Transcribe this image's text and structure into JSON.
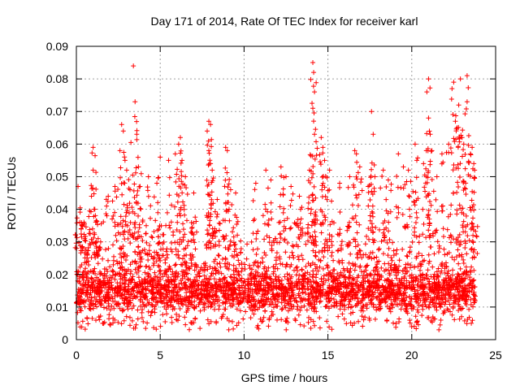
{
  "chart_data": {
    "type": "scatter",
    "title": "Day 171 of 2014, Rate Of TEC Index for receiver karl",
    "xlabel": "GPS time / hours",
    "ylabel": "ROTI / TECUs",
    "xlim": [
      0,
      25
    ],
    "ylim": [
      0,
      0.09
    ],
    "xticks": [
      "0",
      "5",
      "10",
      "15",
      "20",
      "25"
    ],
    "yticks": [
      "0",
      "0.01",
      "0.02",
      "0.03",
      "0.04",
      "0.05",
      "0.06",
      "0.07",
      "0.08",
      "0.09"
    ],
    "grid": true,
    "marker": "+",
    "color": "#ff0000",
    "data_extent_hours": [
      0,
      23.8
    ],
    "typical_range": [
      0.005,
      0.03
    ],
    "series": [
      {
        "name": "ROTI",
        "points": [
          [
            0.1,
            0.047
          ],
          [
            0.2,
            0.036
          ],
          [
            0.5,
            0.031
          ],
          [
            1.0,
            0.059
          ],
          [
            1.0,
            0.052
          ],
          [
            0.9,
            0.044
          ],
          [
            1.1,
            0.04
          ],
          [
            1.3,
            0.031
          ],
          [
            1.9,
            0.044
          ],
          [
            2.3,
            0.047
          ],
          [
            2.6,
            0.058
          ],
          [
            2.7,
            0.066
          ],
          [
            2.8,
            0.064
          ],
          [
            2.9,
            0.055
          ],
          [
            3.0,
            0.052
          ],
          [
            3.2,
            0.046
          ],
          [
            3.4,
            0.084
          ],
          [
            3.5,
            0.073
          ],
          [
            3.6,
            0.063
          ],
          [
            3.7,
            0.053
          ],
          [
            3.8,
            0.047
          ],
          [
            4.3,
            0.05
          ],
          [
            4.8,
            0.048
          ],
          [
            5.0,
            0.056
          ],
          [
            5.5,
            0.055
          ],
          [
            5.9,
            0.057
          ],
          [
            6.1,
            0.06
          ],
          [
            6.2,
            0.062
          ],
          [
            6.3,
            0.055
          ],
          [
            6.5,
            0.05
          ],
          [
            7.0,
            0.045
          ],
          [
            7.8,
            0.064
          ],
          [
            7.9,
            0.067
          ],
          [
            8.0,
            0.066
          ],
          [
            7.9,
            0.058
          ],
          [
            8.0,
            0.054
          ],
          [
            8.1,
            0.052
          ],
          [
            8.4,
            0.043
          ],
          [
            8.9,
            0.059
          ],
          [
            9.0,
            0.058
          ],
          [
            9.2,
            0.046
          ],
          [
            9.5,
            0.045
          ],
          [
            10.7,
            0.048
          ],
          [
            11.3,
            0.052
          ],
          [
            11.6,
            0.049
          ],
          [
            12.2,
            0.053
          ],
          [
            12.5,
            0.05
          ],
          [
            12.8,
            0.047
          ],
          [
            13.3,
            0.044
          ],
          [
            13.9,
            0.052
          ],
          [
            14.1,
            0.085
          ],
          [
            14.15,
            0.082
          ],
          [
            14.2,
            0.076
          ],
          [
            14.1,
            0.071
          ],
          [
            14.2,
            0.063
          ],
          [
            14.6,
            0.062
          ],
          [
            14.7,
            0.059
          ],
          [
            14.8,
            0.055
          ],
          [
            15.1,
            0.052
          ],
          [
            15.7,
            0.048
          ],
          [
            16.3,
            0.05
          ],
          [
            16.6,
            0.058
          ],
          [
            16.7,
            0.057
          ],
          [
            16.9,
            0.053
          ],
          [
            17.4,
            0.047
          ],
          [
            17.6,
            0.07
          ],
          [
            17.7,
            0.063
          ],
          [
            17.8,
            0.05
          ],
          [
            18.3,
            0.052
          ],
          [
            18.6,
            0.049
          ],
          [
            19.2,
            0.057
          ],
          [
            19.5,
            0.053
          ],
          [
            19.8,
            0.052
          ],
          [
            20.2,
            0.06
          ],
          [
            20.3,
            0.055
          ],
          [
            20.7,
            0.054
          ],
          [
            20.9,
            0.076
          ],
          [
            21.0,
            0.08
          ],
          [
            21.0,
            0.068
          ],
          [
            21.1,
            0.063
          ],
          [
            21.2,
            0.058
          ],
          [
            21.5,
            0.05
          ],
          [
            21.8,
            0.057
          ],
          [
            22.2,
            0.06
          ],
          [
            22.4,
            0.077
          ],
          [
            22.5,
            0.079
          ],
          [
            22.6,
            0.067
          ],
          [
            22.7,
            0.065
          ],
          [
            22.8,
            0.072
          ],
          [
            22.9,
            0.08
          ],
          [
            23.0,
            0.062
          ],
          [
            23.1,
            0.06
          ],
          [
            23.3,
            0.081
          ],
          [
            23.3,
            0.073
          ],
          [
            23.5,
            0.057
          ],
          [
            23.6,
            0.059
          ],
          [
            23.7,
            0.054
          ],
          [
            23.75,
            0.052
          ]
        ]
      }
    ]
  }
}
